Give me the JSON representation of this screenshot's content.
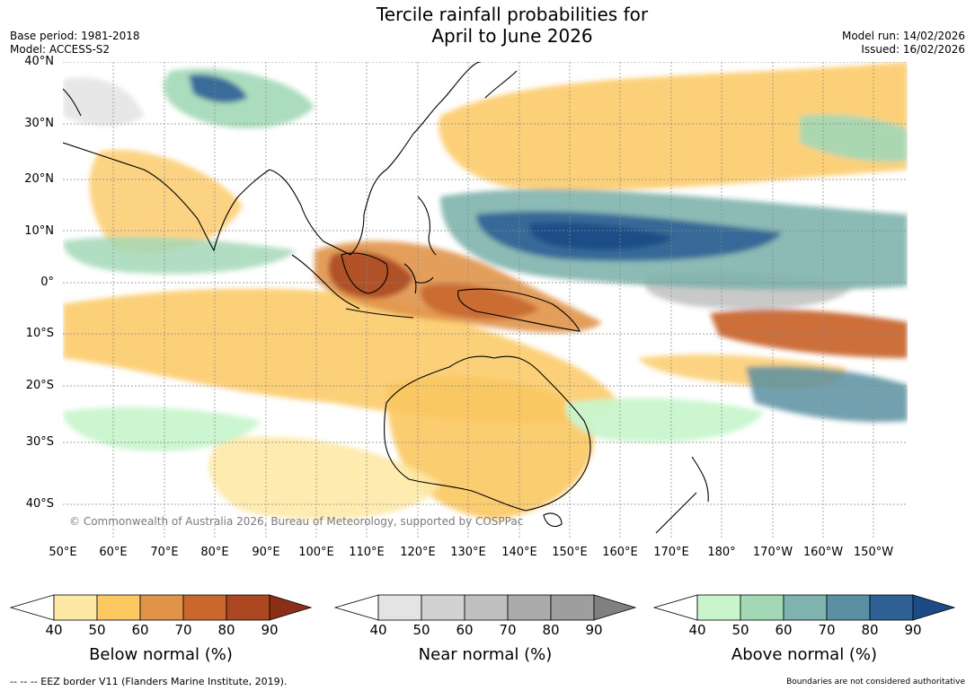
{
  "header": {
    "title_line1": "Tercile rainfall probabilities for",
    "title_line2": "April to June 2026",
    "base_period": "Base period: 1981-2018",
    "model": "Model: ACCESS-S2",
    "model_run": "Model run: 14/02/2026",
    "issued": "Issued: 16/02/2026"
  },
  "map": {
    "lat_labels": [
      "40°N",
      "30°N",
      "20°N",
      "10°N",
      "0°",
      "10°S",
      "20°S",
      "30°S",
      "40°S"
    ],
    "lon_labels": [
      "50°E",
      "60°E",
      "70°E",
      "80°E",
      "90°E",
      "100°E",
      "110°E",
      "120°E",
      "130°E",
      "140°E",
      "150°E",
      "160°E",
      "170°E",
      "180°",
      "170°W",
      "160°W",
      "150°W"
    ],
    "copyright": "© Commonwealth of Australia 2026, Bureau of Meteorology, supported by COSPPac",
    "colors": {
      "below": [
        "#fde9a6",
        "#fbc862",
        "#e1934a",
        "#c9672f",
        "#ab4821",
        "#8c2f17"
      ],
      "near": [
        "#e4e4e4",
        "#d2d2d2",
        "#c0c0c0",
        "#ababab",
        "#808080"
      ],
      "above": [
        "#c8f5cc",
        "#a3d8b7",
        "#7fb3ad",
        "#5b8fa1",
        "#2f6196",
        "#1b4a85"
      ]
    }
  },
  "colorbars": [
    {
      "title": "Below normal (%)",
      "ticks": [
        "40",
        "50",
        "60",
        "70",
        "80",
        "90"
      ]
    },
    {
      "title": "Near normal (%)",
      "ticks": [
        "40",
        "50",
        "60",
        "70",
        "80",
        "90"
      ]
    },
    {
      "title": "Above normal (%)",
      "ticks": [
        "40",
        "50",
        "60",
        "70",
        "80",
        "90"
      ]
    }
  ],
  "footer": {
    "eez": "--  --  -- EEZ border V11 (Flanders Marine Institute, 2019).",
    "disclaimer": "Boundaries are not considered authoritative"
  }
}
